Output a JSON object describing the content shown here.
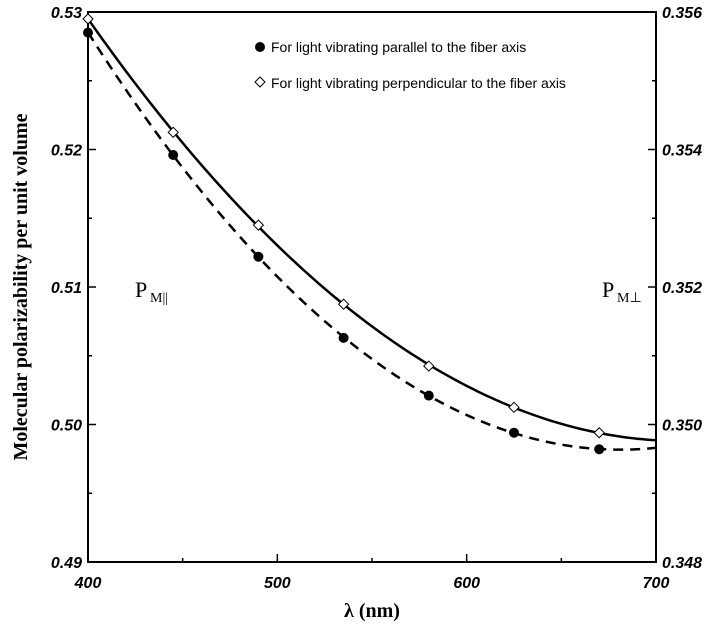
{
  "chart_data": {
    "type": "scatter",
    "xlabel": "λ (nm)",
    "ylabel": "Molecular polarizability per unit volume",
    "xlim": [
      400,
      700
    ],
    "ylim_left": [
      0.49,
      0.53
    ],
    "ylim_right": [
      0.348,
      0.356
    ],
    "x_ticks": [
      "400",
      "500",
      "600",
      "700"
    ],
    "y_ticks_left": [
      "0.49",
      "0.50",
      "0.51",
      "0.52",
      "0.53"
    ],
    "y_ticks_right": [
      "0.348",
      "0.350",
      "0.352",
      "0.354",
      "0.356"
    ],
    "left_axis_label": {
      "main": "P",
      "sub": "M||"
    },
    "right_axis_label": {
      "main": "P",
      "sub": "M⊥"
    },
    "legend_position": "top-right",
    "series": [
      {
        "name": "For light vibrating parallel to the fiber axis",
        "axis": "left",
        "marker": "filled-circle",
        "fit_line": "dashed",
        "x": [
          400,
          445,
          490,
          535,
          580,
          625,
          670
        ],
        "y": [
          0.5285,
          0.5196,
          0.5122,
          0.5063,
          0.5021,
          0.4994,
          0.4982
        ]
      },
      {
        "name": "For light vibrating perpendicular to the fiber axis",
        "axis": "right",
        "marker": "open-diamond",
        "fit_line": "solid",
        "x": [
          400,
          445,
          490,
          535,
          580,
          625,
          670
        ],
        "y": [
          0.3559,
          0.35425,
          0.3529,
          0.35175,
          0.35085,
          0.35025,
          0.34988
        ]
      }
    ],
    "fit_extent_x": [
      400,
      700
    ],
    "grid": false
  }
}
